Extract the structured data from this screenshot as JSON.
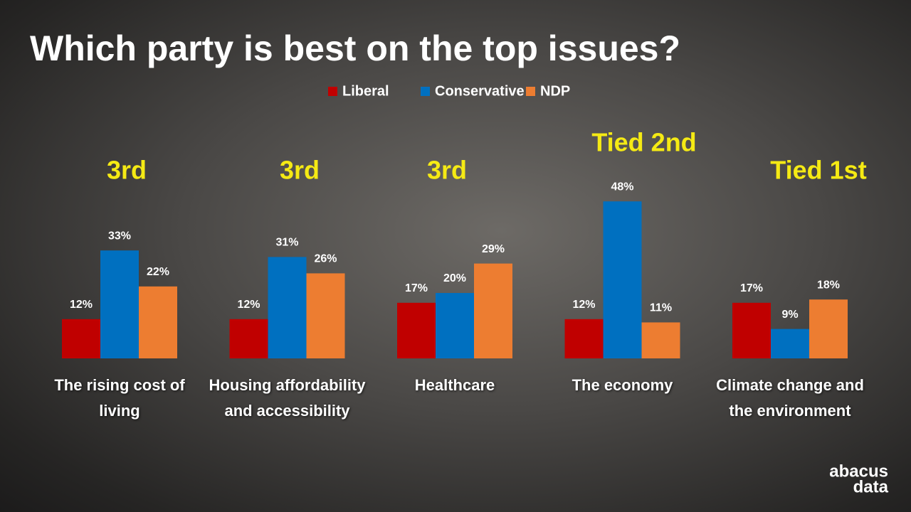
{
  "chart_data": {
    "type": "bar",
    "title": "Which party is best on the top issues?",
    "categories": [
      "The rising cost of living",
      "Housing affordability and accessibility",
      "Healthcare",
      "The economy",
      "Climate change and the environment"
    ],
    "annotations": [
      "3rd",
      "3rd",
      "3rd",
      "Tied 2nd",
      "Tied 1st"
    ],
    "series": [
      {
        "name": "Liberal",
        "color": "#c00000",
        "values": [
          12,
          12,
          17,
          12,
          17
        ],
        "value_labels": [
          "12%",
          "12%",
          "17%",
          "12%",
          "17%"
        ]
      },
      {
        "name": "Conservative",
        "color": "#0070c0",
        "values": [
          33,
          31,
          20,
          48,
          9
        ],
        "value_labels": [
          "33%",
          "31%",
          "20%",
          "48%",
          "9%"
        ]
      },
      {
        "name": "NDP",
        "color": "#ed7d31",
        "values": [
          22,
          26,
          29,
          11,
          18
        ],
        "value_labels": [
          "22%",
          "26%",
          "29%",
          "11%",
          "18%"
        ]
      }
    ],
    "legend": "top"
  },
  "logo": {
    "lines": [
      "abacus",
      "data"
    ]
  }
}
